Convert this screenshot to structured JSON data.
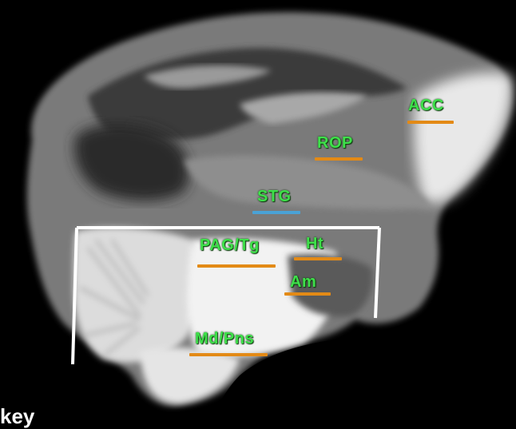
{
  "image": {
    "description_colors": {
      "label": "#3ee04a",
      "bar_orange": "#e38a16",
      "bar_blue": "#4aa2d6",
      "box": "#ffffff"
    }
  },
  "labels": {
    "acc": "ACC",
    "rop": "ROP",
    "stg": "STG",
    "pag_tg": "PAG/Tg",
    "ht": "Ht",
    "am": "Am",
    "md_pns": "Md/Pns"
  },
  "corner_text": "key"
}
